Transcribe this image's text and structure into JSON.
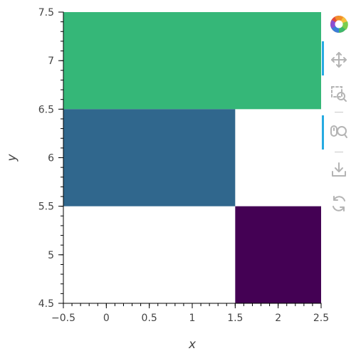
{
  "chart_data": {
    "type": "heatmap",
    "title": "",
    "xlabel": "x",
    "ylabel": "y",
    "xlim": [
      -0.5,
      2.5
    ],
    "ylim": [
      4.5,
      7.5
    ],
    "x_major_ticks": [
      -0.5,
      0,
      0.5,
      1,
      1.5,
      2,
      2.5
    ],
    "x_tick_labels": [
      "−0.5",
      "0",
      "0.5",
      "1",
      "1.5",
      "2",
      "2.5"
    ],
    "y_major_ticks": [
      4.5,
      5,
      5.5,
      6,
      6.5,
      7,
      7.5
    ],
    "y_tick_labels": [
      "4.5",
      "5",
      "5.5",
      "6",
      "6.5",
      "7",
      "7.5"
    ],
    "grid": false,
    "legend": "none",
    "cells": [
      {
        "x0": -0.5,
        "x1": 2.5,
        "y0": 6.5,
        "y1": 7.5,
        "color": "#35b778"
      },
      {
        "x0": -0.5,
        "x1": 1.5,
        "y0": 5.5,
        "y1": 6.5,
        "color": "#30678d"
      },
      {
        "x0": 1.5,
        "x1": 2.5,
        "y0": 4.5,
        "y1": 5.5,
        "color": "#440154"
      }
    ]
  },
  "toolbar": {
    "tools": [
      {
        "name": "bokeh-logo-icon",
        "active": false
      },
      {
        "name": "pan-icon",
        "active": true
      },
      {
        "name": "box-zoom-icon",
        "active": false
      },
      {
        "name": "wheel-zoom-icon",
        "active": true
      },
      {
        "name": "save-icon",
        "active": false
      },
      {
        "name": "reset-icon",
        "active": false
      }
    ],
    "accent_color": "#26aae1"
  }
}
